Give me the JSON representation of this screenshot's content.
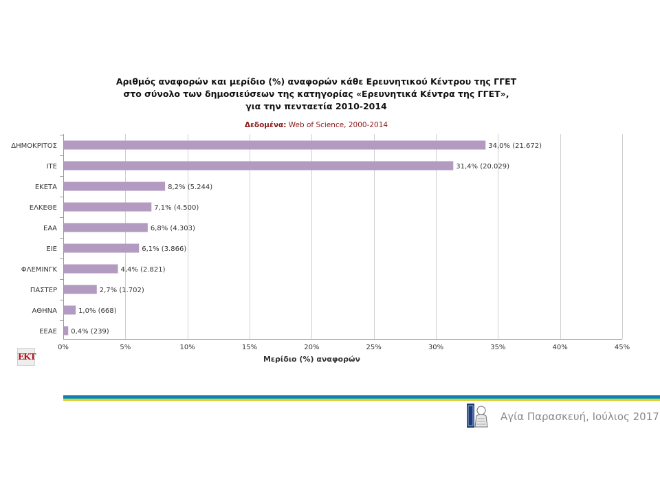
{
  "title_lines": [
    "Αριθμός αναφορών και μερίδιο (%) αναφορών κάθε Ερευνητικού Κέντρου της ΓΓΕΤ",
    "στο σύνολο των δημοσιεύσεων της κατηγορίας «Ερευνητικά Κέντρα της ΓΓΕΤ»,",
    "για την πενταετία 2010-2014"
  ],
  "source": {
    "label": "Δεδομένα:",
    "text": "Web of Science, 2000-2014"
  },
  "logo_text": "ΕΚΤ",
  "footer": "Αγία Παρασκευή, Ιούλιος 2017",
  "colors": {
    "bar": "#b39ac0",
    "grid": "#cfcfcf",
    "axis": "#999999",
    "source": "#8b1a1a",
    "stripe_blue": "#1f77b4",
    "stripe_yellow": "#e5cc2e"
  },
  "chart_data": {
    "type": "bar",
    "orientation": "horizontal",
    "categories": [
      "ΔΗΜΟΚΡΙΤΟΣ",
      "ΙΤΕ",
      "ΕΚΕΤΑ",
      "ΕΛΚΕΘΕ",
      "ΕΑΑ",
      "ΕΙΕ",
      "ΦΛΕΜΙΝΓΚ",
      "ΠΑΣΤΕΡ",
      "ΑΘΗΝΑ",
      "ΕΕΑΕ"
    ],
    "values": [
      34.0,
      31.4,
      8.2,
      7.1,
      6.8,
      6.1,
      4.4,
      2.7,
      1.0,
      0.4
    ],
    "data_labels": [
      "34,0% (21.672)",
      "31,4% (20.029)",
      "8,2% (5.244)",
      "7,1% (4.500)",
      "6,8% (4.303)",
      "6,1% (3.866)",
      "4,4% (2.821)",
      "2,7% (1.702)",
      "1,0% (668)",
      "0,4% (239)"
    ],
    "xlabel": "Μερίδιο (%) αναφορών",
    "ylabel": "",
    "xlim": [
      0,
      45
    ],
    "xticks": [
      0,
      5,
      10,
      15,
      20,
      25,
      30,
      35,
      40,
      45
    ],
    "xtick_labels": [
      "0%",
      "5%",
      "10%",
      "15%",
      "20%",
      "25%",
      "30%",
      "35%",
      "40%",
      "45%"
    ],
    "grid": true,
    "legend": "none"
  }
}
